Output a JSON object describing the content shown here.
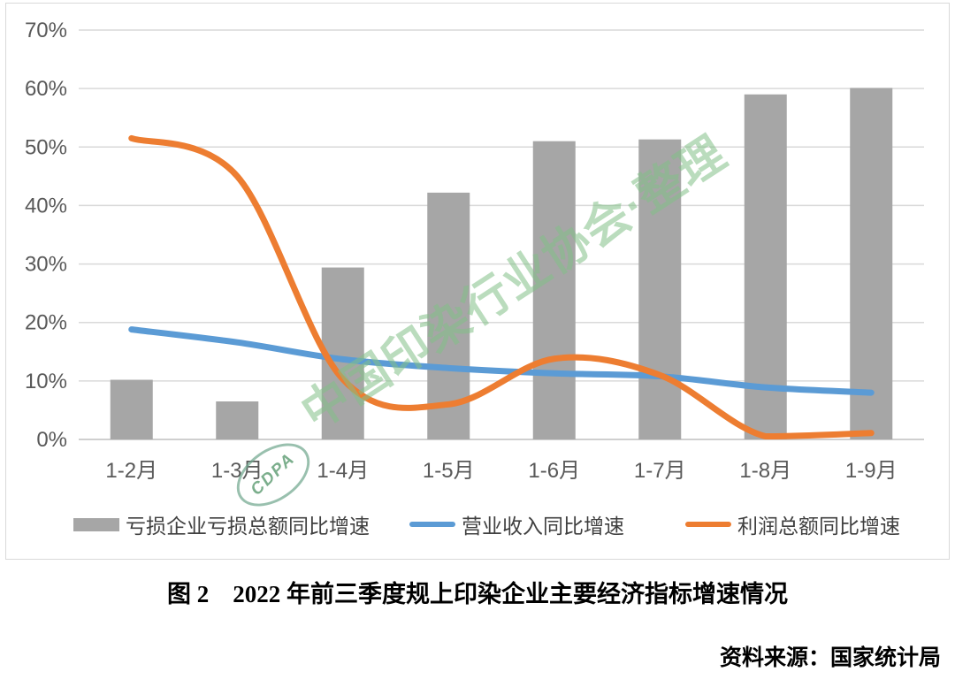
{
  "chart_data": {
    "type": "bar+line combo",
    "categories": [
      "1-2月",
      "1-3月",
      "1-4月",
      "1-5月",
      "1-6月",
      "1-7月",
      "1-8月",
      "1-9月"
    ],
    "series": [
      {
        "name": "亏损企业亏损总额同比增速",
        "type": "bar",
        "color": "#A6A6A6",
        "values": [
          10.2,
          6.5,
          29.4,
          42.2,
          51.0,
          51.3,
          59.0,
          60.1
        ]
      },
      {
        "name": "营业收入同比增速",
        "type": "line",
        "color": "#5B9BD5",
        "values": [
          18.8,
          16.6,
          13.7,
          12.2,
          11.3,
          10.8,
          8.9,
          8.0
        ]
      },
      {
        "name": "利润总额同比增速",
        "type": "line",
        "color": "#ED7D31",
        "values": [
          51.5,
          45.0,
          10.3,
          6.0,
          13.8,
          11.0,
          0.4,
          1.1
        ]
      }
    ],
    "title": "",
    "xlabel": "",
    "ylabel": "",
    "ylim": [
      0,
      70
    ],
    "yticks": [
      "0%",
      "10%",
      "20%",
      "30%",
      "40%",
      "50%",
      "60%",
      "70%"
    ],
    "ytick_values": [
      0,
      10,
      20,
      30,
      40,
      50,
      60,
      70
    ],
    "grid": true,
    "legend_position": "bottom"
  },
  "colors": {
    "grid_line": "#D9D9D9",
    "zero_axis": "#BFBFBF",
    "tick_label": "#595959",
    "legend_label": "#404040",
    "watermark_green": "#82C086"
  },
  "watermark": {
    "text": "中国印染行业协会·整理",
    "stamp_text": "CDPA"
  },
  "caption": {
    "text": "图 2　2022 年前三季度规上印染企业主要经济指标增速情况"
  },
  "source": {
    "text": "资料来源：国家统计局"
  }
}
